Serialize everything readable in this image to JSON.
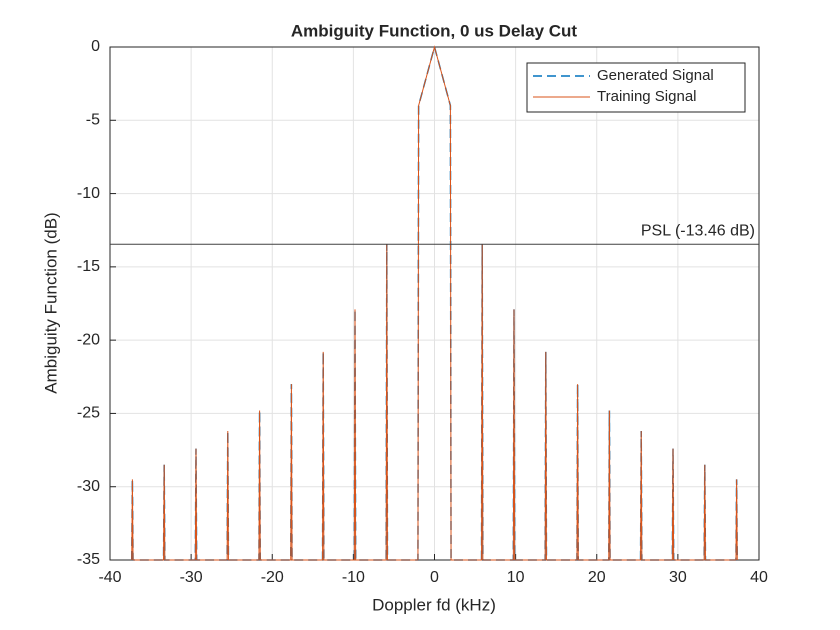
{
  "chart_data": {
    "type": "line",
    "title": "Ambiguity Function, 0 us Delay Cut",
    "x_label": "Doppler fd (kHz)",
    "y_label": "Ambiguity Function (dB)",
    "x": [
      -37.32,
      -37.24,
      -37.16,
      -33.4,
      -33.32,
      -33.24,
      -29.48,
      -29.4,
      -29.32,
      -25.56,
      -25.48,
      -25.4,
      -21.64,
      -21.56,
      -21.48,
      -17.72,
      -17.64,
      -17.56,
      -13.8,
      -13.72,
      -13.64,
      -9.88,
      -9.8,
      -9.72,
      -5.96,
      -5.88,
      -5.8,
      -2.04,
      -1.96,
      0,
      1.96,
      2.04,
      5.8,
      5.88,
      5.96,
      9.72,
      9.8,
      9.88,
      13.64,
      13.72,
      13.8,
      17.56,
      17.64,
      17.72,
      21.48,
      21.56,
      21.64,
      25.4,
      25.48,
      25.56,
      29.32,
      29.4,
      29.48,
      33.24,
      33.32,
      33.4,
      37.16,
      37.24,
      37.32
    ],
    "series": [
      {
        "name": "Generated Signal",
        "color": "#0072BD",
        "dashed": true,
        "values": [
          -35,
          -29.5,
          -35,
          -35,
          -28.5,
          -35,
          -35,
          -27.4,
          -35,
          -35,
          -26.2,
          -35,
          -35,
          -24.8,
          -35,
          -35,
          -23,
          -35,
          -35,
          -20.8,
          -35,
          -35,
          -17.9,
          -35,
          -35,
          -13.46,
          -35,
          -35,
          -4,
          0,
          -4,
          -35,
          -35,
          -13.46,
          -35,
          -35,
          -17.9,
          -35,
          -35,
          -20.8,
          -35,
          -35,
          -23,
          -35,
          -35,
          -24.8,
          -35,
          -35,
          -26.2,
          -35,
          -35,
          -27.4,
          -35,
          -35,
          -28.5,
          -35,
          -35,
          -29.5,
          -35
        ]
      },
      {
        "name": "Training Signal",
        "color": "#D95319",
        "dashed": false,
        "values": [
          -35,
          -29.5,
          -35,
          -35,
          -28.5,
          -35,
          -35,
          -27.4,
          -35,
          -35,
          -26.2,
          -35,
          -35,
          -24.8,
          -35,
          -35,
          -23,
          -35,
          -35,
          -20.8,
          -35,
          -35,
          -17.9,
          -35,
          -35,
          -13.46,
          -35,
          -35,
          -4,
          0,
          -4,
          -35,
          -35,
          -13.46,
          -35,
          -35,
          -17.9,
          -35,
          -35,
          -20.8,
          -35,
          -35,
          -23,
          -35,
          -35,
          -24.8,
          -35,
          -35,
          -26.2,
          -35,
          -35,
          -27.4,
          -35,
          -35,
          -28.5,
          -35,
          -35,
          -29.5,
          -35
        ]
      }
    ],
    "reference_line": {
      "value": -13.46,
      "label": "PSL (-13.46 dB)"
    },
    "xlim": [
      -40,
      40
    ],
    "xticks": [
      -40,
      -30,
      -20,
      -10,
      0,
      10,
      20,
      30,
      40
    ],
    "ylim": [
      -35,
      0
    ],
    "yticks": [
      -35,
      -30,
      -25,
      -20,
      -15,
      -10,
      -5,
      0
    ],
    "grid": true,
    "legend": "northeast"
  }
}
